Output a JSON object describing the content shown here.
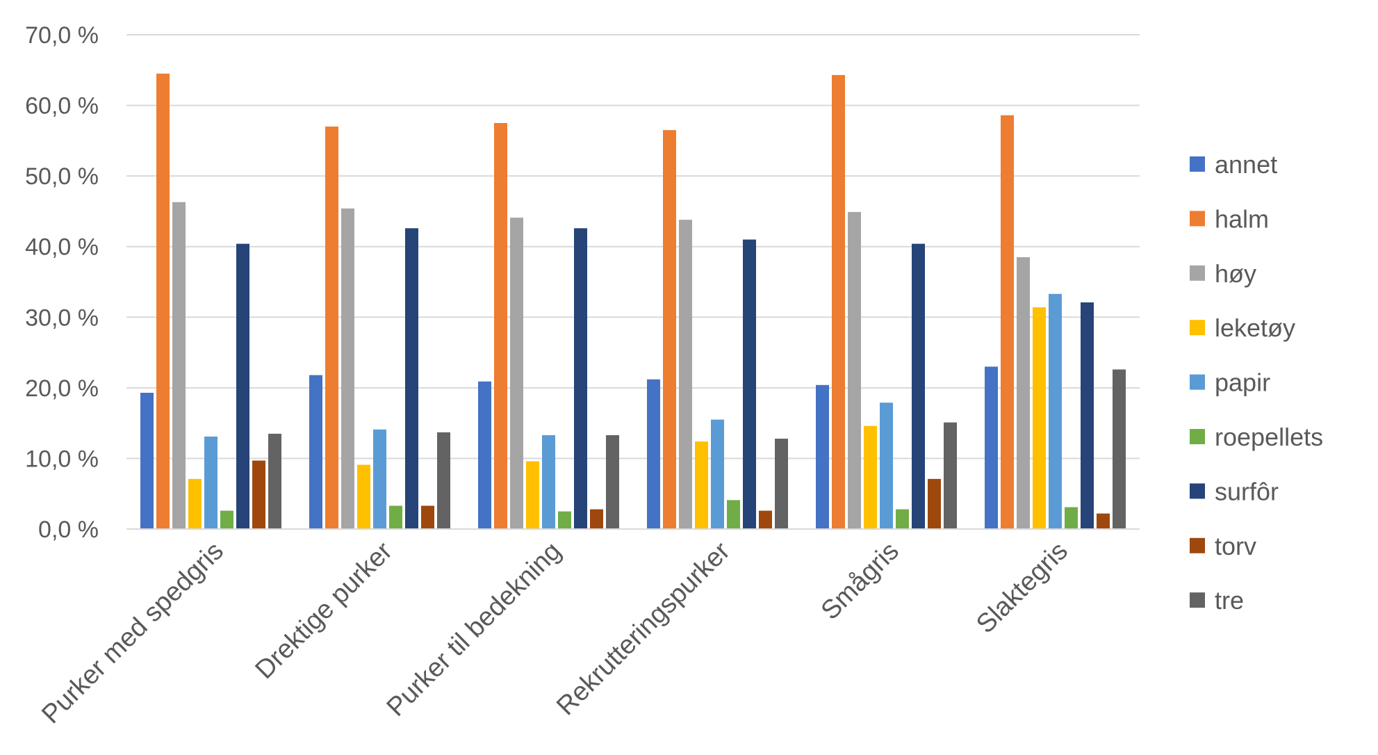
{
  "chart_data": {
    "type": "bar",
    "title": "",
    "xlabel": "",
    "ylabel": "",
    "ylim": [
      0,
      70
    ],
    "y_ticks": [
      "0,0 %",
      "10,0 %",
      "20,0 %",
      "30,0 %",
      "40,0 %",
      "50,0 %",
      "60,0 %",
      "70,0 %"
    ],
    "grid": true,
    "legend_position": "right",
    "categories": [
      "Purker med spedgris",
      "Drektige purker",
      "Purker til bedekning",
      "Rekrutteringspurker",
      "Smågris",
      "Slaktegris"
    ],
    "series": [
      {
        "name": "annet",
        "color": "#4472C4",
        "values": [
          19.3,
          21.8,
          20.9,
          21.2,
          20.4,
          23.0
        ]
      },
      {
        "name": "halm",
        "color": "#ED7D31",
        "values": [
          64.5,
          57.0,
          57.5,
          56.5,
          64.3,
          58.6
        ]
      },
      {
        "name": "høy",
        "color": "#A5A5A5",
        "values": [
          46.3,
          45.4,
          44.1,
          43.8,
          44.9,
          38.5
        ]
      },
      {
        "name": "leketøy",
        "color": "#FFC000",
        "values": [
          7.1,
          9.1,
          9.6,
          12.4,
          14.6,
          31.4
        ]
      },
      {
        "name": "papir",
        "color": "#5B9BD5",
        "values": [
          13.1,
          14.1,
          13.3,
          15.5,
          17.9,
          33.3
        ]
      },
      {
        "name": "roepellets",
        "color": "#70AD47",
        "values": [
          2.6,
          3.3,
          2.5,
          4.1,
          2.8,
          3.1
        ]
      },
      {
        "name": "surfôr",
        "color": "#264478",
        "values": [
          40.4,
          42.6,
          42.6,
          41.0,
          40.4,
          32.1
        ]
      },
      {
        "name": "torv",
        "color": "#9E480E",
        "values": [
          9.7,
          3.3,
          2.8,
          2.6,
          7.1,
          2.2
        ]
      },
      {
        "name": "tre",
        "color": "#636363",
        "values": [
          13.5,
          13.7,
          13.3,
          12.8,
          15.1,
          22.6
        ]
      }
    ]
  }
}
